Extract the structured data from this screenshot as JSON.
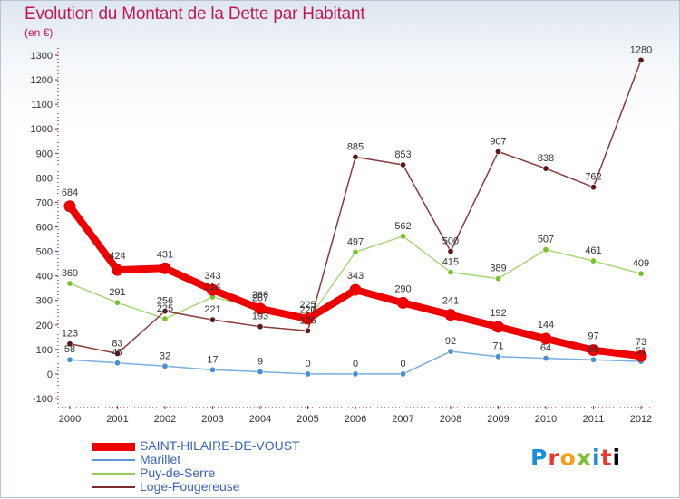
{
  "title": "Evolution du Montant de la Dette par Habitant",
  "subtitle": "(en €)",
  "logo_text": "Proxiti",
  "chart_data": {
    "type": "line",
    "title": "Evolution du Montant de la Dette par Habitant",
    "subtitle": "(en €)",
    "xlabel": "",
    "ylabel": "",
    "x": [
      "2000",
      "2001",
      "2002",
      "2003",
      "2004",
      "2005",
      "2006",
      "2007",
      "2008",
      "2009",
      "2010",
      "2011",
      "2012"
    ],
    "ylim": [
      -100,
      1300
    ],
    "yticks": [
      -100,
      0,
      100,
      200,
      300,
      400,
      500,
      600,
      700,
      800,
      900,
      1000,
      1100,
      1200,
      1300
    ],
    "grid": false,
    "legend_position": "bottom-left",
    "series": [
      {
        "name": "SAINT-HILAIRE-DE-VOUST",
        "color": "#ee0000",
        "values": [
          684,
          424,
          431,
          343,
          266,
          225,
          343,
          290,
          241,
          192,
          144,
          97,
          73
        ]
      },
      {
        "name": "Marillet",
        "color": "#5b9bd5",
        "values": [
          58,
          45,
          32,
          17,
          9,
          0,
          0,
          0,
          92,
          71,
          64,
          58,
          51
        ]
      },
      {
        "name": "Puy-de-Serre",
        "color": "#99cc55",
        "values": [
          369,
          291,
          225,
          314,
          267,
          220,
          497,
          562,
          415,
          389,
          507,
          461,
          409
        ]
      },
      {
        "name": "Loge-Fougereuse",
        "color": "#7a2a2a",
        "values": [
          123,
          83,
          256,
          221,
          193,
          176,
          885,
          853,
          500,
          907,
          838,
          762,
          1280
        ]
      }
    ]
  }
}
